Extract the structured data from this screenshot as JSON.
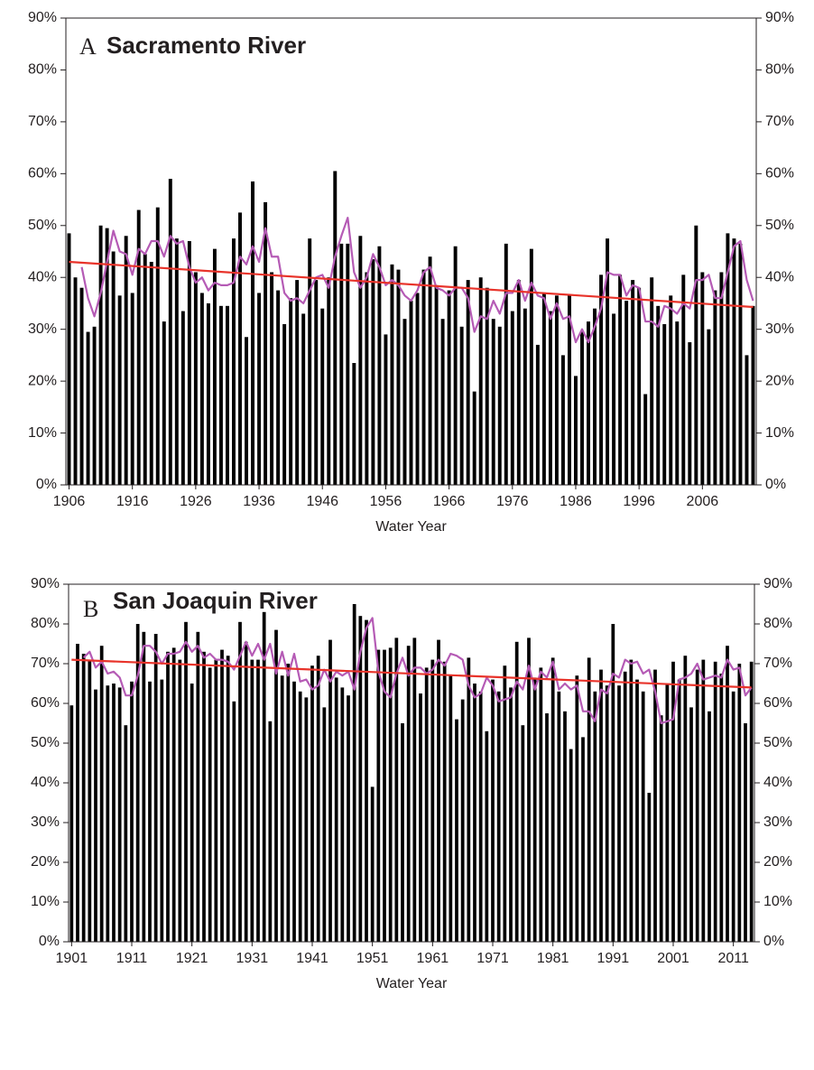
{
  "chart_data": [
    {
      "type": "bar",
      "panel_label": "A",
      "title": "Sacramento River",
      "xlabel": "Water Year",
      "x": [
        1906,
        1907,
        1908,
        1909,
        1910,
        1911,
        1912,
        1913,
        1914,
        1915,
        1916,
        1917,
        1918,
        1919,
        1920,
        1921,
        1922,
        1923,
        1924,
        1925,
        1926,
        1927,
        1928,
        1929,
        1930,
        1931,
        1932,
        1933,
        1934,
        1935,
        1936,
        1937,
        1938,
        1939,
        1940,
        1941,
        1942,
        1943,
        1944,
        1945,
        1946,
        1947,
        1948,
        1949,
        1950,
        1951,
        1952,
        1953,
        1954,
        1955,
        1956,
        1957,
        1958,
        1959,
        1960,
        1961,
        1962,
        1963,
        1964,
        1965,
        1966,
        1967,
        1968,
        1969,
        1970,
        1971,
        1972,
        1973,
        1974,
        1975,
        1976,
        1977,
        1978,
        1979,
        1980,
        1981,
        1982,
        1983,
        1984,
        1985,
        1986,
        1987,
        1988,
        1989,
        1990,
        1991,
        1992,
        1993,
        1994,
        1995,
        1996,
        1997,
        1998,
        1999,
        2000,
        2001,
        2002,
        2003,
        2004,
        2005,
        2006,
        2007,
        2008,
        2009,
        2010,
        2011,
        2012,
        2013,
        2014
      ],
      "xlim": [
        1905.5,
        2014.5
      ],
      "xticks": [
        1906,
        1916,
        1926,
        1936,
        1946,
        1956,
        1966,
        1976,
        1986,
        1996,
        2006
      ],
      "ylim": [
        0,
        90
      ],
      "yticks": [
        {
          "value": 0,
          "label": "0%"
        },
        {
          "value": 10,
          "label": "10%"
        },
        {
          "value": 20,
          "label": "20%"
        },
        {
          "value": 30,
          "label": "30%"
        },
        {
          "value": 40,
          "label": "40%"
        },
        {
          "value": 50,
          "label": "50%"
        },
        {
          "value": 60,
          "label": "60%"
        },
        {
          "value": 70,
          "label": "70%"
        },
        {
          "value": 80,
          "label": "80%"
        },
        {
          "value": 90,
          "label": "90%"
        }
      ],
      "y2lim": [
        0,
        90
      ],
      "y2ticks": [
        {
          "value": 0,
          "label": "0%"
        },
        {
          "value": 10,
          "label": "10%"
        },
        {
          "value": 20,
          "label": "20%"
        },
        {
          "value": 30,
          "label": "30%"
        },
        {
          "value": 40,
          "label": "40%"
        },
        {
          "value": 50,
          "label": "50%"
        },
        {
          "value": 60,
          "label": "60%"
        },
        {
          "value": 70,
          "label": "70%"
        },
        {
          "value": 80,
          "label": "80%"
        },
        {
          "value": 90,
          "label": "90%"
        }
      ],
      "series": [
        {
          "type": "bar",
          "color": "#000000",
          "values": [
            48.5,
            40,
            38,
            29.5,
            30.5,
            50,
            49.5,
            45,
            36.5,
            48,
            37,
            53,
            44.5,
            43,
            53.5,
            31.5,
            59,
            47.5,
            33.5,
            47,
            41,
            37,
            35,
            45.5,
            34.5,
            34.5,
            47.5,
            52.5,
            28.5,
            58.5,
            37,
            54.5,
            41,
            37.5,
            31,
            36,
            39.5,
            33,
            47.5,
            39.5,
            34,
            40,
            60.5,
            46.5,
            46.5,
            23.5,
            48,
            41,
            43.5,
            46,
            29,
            42.5,
            41.5,
            32,
            35.5,
            37,
            41.5,
            44,
            38.5,
            32,
            37.5,
            46,
            30.5,
            39.5,
            18,
            40,
            38,
            32,
            30.5,
            46.5,
            33.5,
            39.5,
            34,
            45.5,
            27,
            37,
            33.5,
            36.5,
            25,
            36.5,
            21,
            29.5,
            31.5,
            34,
            40.5,
            47.5,
            33,
            40.5,
            35.5,
            39.5,
            38,
            17.5,
            40,
            34.5,
            31,
            36.5,
            31.5,
            40.5,
            27.5,
            50,
            41,
            30,
            37.5,
            41,
            48.5,
            47.5,
            46.5,
            25,
            34.5
          ]
        },
        {
          "type": "line",
          "color": "#b55bb5",
          "values": [
            null,
            null,
            42,
            36,
            32.5,
            37,
            43,
            49,
            45,
            44.5,
            40.5,
            45.5,
            44.5,
            47,
            47,
            44,
            48,
            46.5,
            47,
            42,
            39,
            40,
            37.5,
            39,
            38.5,
            38.5,
            39,
            44,
            42.5,
            46,
            43,
            49.5,
            44,
            44,
            37,
            35.5,
            36,
            35,
            37.5,
            40,
            40.5,
            38,
            44,
            48,
            51.5,
            41,
            38,
            40,
            44.5,
            42,
            38.5,
            39.5,
            38.5,
            36.5,
            35.5,
            37.5,
            41,
            42,
            38,
            37.5,
            36.5,
            38,
            38,
            36,
            29.5,
            32.5,
            32,
            35.5,
            33,
            37,
            37,
            39.5,
            35.5,
            39,
            36.5,
            36,
            32,
            35,
            32,
            32.5,
            27.5,
            30,
            27.5,
            30.5,
            34,
            41,
            40.5,
            40.5,
            36.5,
            38.5,
            38,
            31.5,
            31.5,
            30.5,
            34.5,
            34,
            33,
            35,
            34,
            39.5,
            39.5,
            40.5,
            36,
            36,
            41,
            46,
            47,
            39.5,
            35.5
          ]
        },
        {
          "type": "line",
          "color": "#e8332a",
          "x": [
            1906,
            2014
          ],
          "values": [
            43,
            34.3
          ]
        }
      ]
    },
    {
      "type": "bar",
      "panel_label": "B",
      "title": "San Joaquin River",
      "xlabel": "Water Year",
      "x": [
        1901,
        1902,
        1903,
        1904,
        1905,
        1906,
        1907,
        1908,
        1909,
        1910,
        1911,
        1912,
        1913,
        1914,
        1915,
        1916,
        1917,
        1918,
        1919,
        1920,
        1921,
        1922,
        1923,
        1924,
        1925,
        1926,
        1927,
        1928,
        1929,
        1930,
        1931,
        1932,
        1933,
        1934,
        1935,
        1936,
        1937,
        1938,
        1939,
        1940,
        1941,
        1942,
        1943,
        1944,
        1945,
        1946,
        1947,
        1948,
        1949,
        1950,
        1951,
        1952,
        1953,
        1954,
        1955,
        1956,
        1957,
        1958,
        1959,
        1960,
        1961,
        1962,
        1963,
        1964,
        1965,
        1966,
        1967,
        1968,
        1969,
        1970,
        1971,
        1972,
        1973,
        1974,
        1975,
        1976,
        1977,
        1978,
        1979,
        1980,
        1981,
        1982,
        1983,
        1984,
        1985,
        1986,
        1987,
        1988,
        1989,
        1990,
        1991,
        1992,
        1993,
        1994,
        1995,
        1996,
        1997,
        1998,
        1999,
        2000,
        2001,
        2002,
        2003,
        2004,
        2005,
        2006,
        2007,
        2008,
        2009,
        2010,
        2011,
        2012,
        2013,
        2014
      ],
      "xlim": [
        1900.5,
        2014.5
      ],
      "xticks": [
        1901,
        1911,
        1921,
        1931,
        1941,
        1951,
        1961,
        1971,
        1981,
        1991,
        2001,
        2011
      ],
      "ylim": [
        0,
        90
      ],
      "yticks": [
        {
          "value": 0,
          "label": "0%"
        },
        {
          "value": 10,
          "label": "10%"
        },
        {
          "value": 20,
          "label": "20%"
        },
        {
          "value": 30,
          "label": "30%"
        },
        {
          "value": 40,
          "label": "40%"
        },
        {
          "value": 50,
          "label": "50%"
        },
        {
          "value": 60,
          "label": "60%"
        },
        {
          "value": 70,
          "label": "70%"
        },
        {
          "value": 80,
          "label": "80%"
        },
        {
          "value": 90,
          "label": "90%"
        }
      ],
      "y2lim": [
        0,
        90
      ],
      "y2ticks": [
        {
          "value": 0,
          "label": "0%"
        },
        {
          "value": 10,
          "label": "10%"
        },
        {
          "value": 20,
          "label": "20%"
        },
        {
          "value": 30,
          "label": "30%"
        },
        {
          "value": 40,
          "label": "40%"
        },
        {
          "value": 50,
          "label": "50%"
        },
        {
          "value": 60,
          "label": "60%"
        },
        {
          "value": 70,
          "label": "70%"
        },
        {
          "value": 80,
          "label": "80%"
        },
        {
          "value": 90,
          "label": "90%"
        }
      ],
      "series": [
        {
          "type": "bar",
          "color": "#000000",
          "values": [
            59.5,
            75,
            72.5,
            71,
            63.5,
            74.5,
            64.5,
            65,
            64,
            54.5,
            65.5,
            80,
            78,
            65.5,
            77.5,
            66,
            73,
            74,
            71,
            80.5,
            65,
            78,
            73,
            69,
            71,
            73.5,
            72,
            60.5,
            80.5,
            75.5,
            71,
            71,
            83,
            55.5,
            78.5,
            67,
            70,
            65.5,
            63,
            61.5,
            69.5,
            72,
            59,
            76,
            66.5,
            64,
            62,
            85,
            82,
            81,
            39,
            73.5,
            73.5,
            74,
            76.5,
            55,
            74.5,
            76.5,
            62.5,
            69,
            71,
            76,
            70.5,
            67,
            56,
            61,
            71.5,
            65,
            63,
            53,
            66,
            63,
            69.5,
            64,
            75.5,
            54.5,
            76.5,
            66.5,
            69,
            57.5,
            71.5,
            63,
            58,
            48.5,
            67,
            51.5,
            71.5,
            63,
            68.5,
            64.5,
            80,
            64.5,
            68,
            71,
            66,
            63,
            37.5,
            68.5,
            57,
            65,
            70.5,
            66,
            72,
            59,
            68.5,
            71,
            58,
            70.5,
            67.5,
            74.5,
            63,
            70,
            55,
            70.5
          ]
        },
        {
          "type": "line",
          "color": "#b55bb5",
          "values": [
            null,
            null,
            71.5,
            73,
            69,
            70.5,
            67.5,
            68,
            66.5,
            62,
            62,
            67,
            74.5,
            74.5,
            73,
            70,
            72.5,
            72.5,
            73,
            75.5,
            73,
            74.5,
            71.5,
            72.5,
            71,
            71,
            70.5,
            68.5,
            72,
            75.5,
            72,
            75,
            71,
            75,
            67.5,
            73,
            67,
            72.5,
            65.5,
            66,
            63.5,
            64.5,
            68.5,
            65.5,
            68,
            67,
            68,
            63.5,
            73,
            79,
            81.5,
            68,
            63,
            61.5,
            67.5,
            71.5,
            67,
            69,
            69,
            67.5,
            68.5,
            71,
            69.5,
            72.5,
            72,
            71,
            64.5,
            61.5,
            62.5,
            66.5,
            64.5,
            60.5,
            61,
            61.5,
            65.5,
            63.5,
            69.5,
            63.5,
            68,
            66.5,
            70.5,
            63.5,
            65,
            63.5,
            64.5,
            58,
            58,
            55.5,
            63.5,
            62.5,
            67.5,
            66.5,
            71,
            70,
            70.5,
            67.5,
            68.5,
            63,
            55,
            55.5,
            56,
            66,
            66.5,
            67.5,
            70,
            66,
            66.5,
            67,
            66.5,
            71,
            68.5,
            69,
            62,
            64
          ]
        },
        {
          "type": "line",
          "color": "#e8332a",
          "x": [
            1901,
            2014
          ],
          "values": [
            71,
            64
          ]
        }
      ]
    }
  ]
}
